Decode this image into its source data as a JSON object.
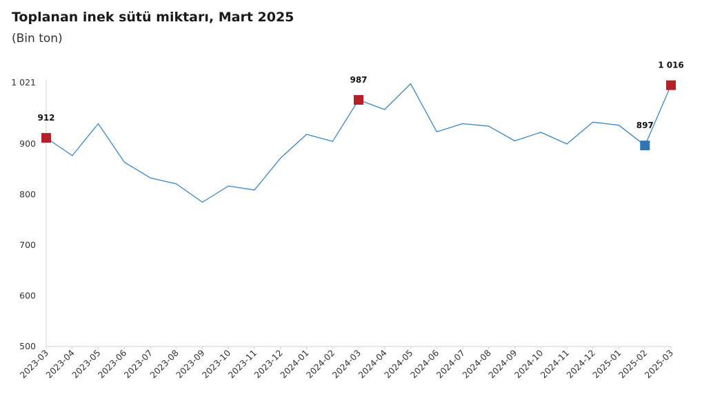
{
  "header": {
    "title": "Toplanan inek sütü miktarı, Mart 2025",
    "subtitle": "(Bin ton)"
  },
  "colors": {
    "line": "#3a85c2",
    "highlight_red": "#b3202a",
    "highlight_blue": "#2e75b6",
    "axis": "#d0d0d0"
  },
  "chart_data": {
    "type": "line",
    "title": "Toplanan inek sütü miktarı, Mart 2025",
    "subtitle": "(Bin ton)",
    "xlabel": "",
    "ylabel": "",
    "ylim": [
      500,
      1021
    ],
    "yticks": [
      500,
      600,
      700,
      800,
      900,
      1021
    ],
    "ytick_labels": [
      "500",
      "600",
      "700",
      "800",
      "900",
      "1 021"
    ],
    "grid": false,
    "x": [
      "2023-03",
      "2023-04",
      "2023-05",
      "2023-06",
      "2023-07",
      "2023-08",
      "2023-09",
      "2023-10",
      "2023-11",
      "2023-12",
      "2024-01",
      "2024-02",
      "2024-03",
      "2024-04",
      "2024-05",
      "2024-06",
      "2024-07",
      "2024-08",
      "2024-09",
      "2024-10",
      "2024-11",
      "2024-12",
      "2025-01",
      "2025-02",
      "2025-03"
    ],
    "series": [
      {
        "values": [
          912,
          877,
          940,
          864,
          833,
          821,
          785,
          817,
          809,
          872,
          919,
          905,
          987,
          968,
          1019,
          924,
          940,
          935,
          906,
          923,
          900,
          943,
          937,
          897,
          1016
        ]
      }
    ],
    "markers": [
      {
        "index": 0,
        "label": "912",
        "color": "red"
      },
      {
        "index": 12,
        "label": "987",
        "color": "red"
      },
      {
        "index": 23,
        "label": "897",
        "color": "blue"
      },
      {
        "index": 24,
        "label": "1 016",
        "color": "red"
      }
    ]
  }
}
